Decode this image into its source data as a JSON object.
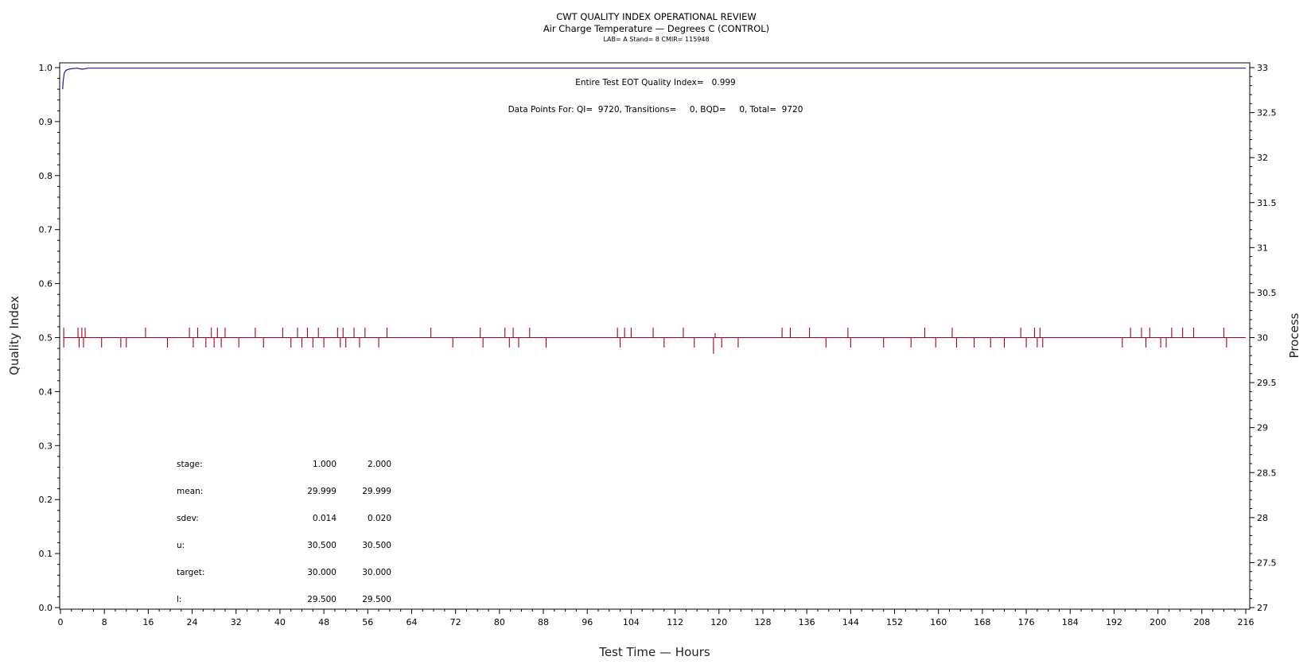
{
  "header": {
    "title": "CWT QUALITY INDEX OPERATIONAL REVIEW",
    "subtitle": "Air Charge Temperature — Degrees C (CONTROL)",
    "info": "LAB= A Stand= 8 CMIR= 115948"
  },
  "annotations": {
    "eot_quality": "Entire Test EOT Quality Index=   0.999",
    "data_points": "Data Points For: QI=  9720, Transitions=     0, BQD=     0, Total=  9720"
  },
  "stats_table": {
    "rows": [
      {
        "label": "stage:",
        "v1": "1.000",
        "v2": "2.000"
      },
      {
        "label": "mean:",
        "v1": "29.999",
        "v2": "29.999"
      },
      {
        "label": "sdev:",
        "v1": "0.014",
        "v2": "0.020"
      },
      {
        "label": "u:",
        "v1": "30.500",
        "v2": "30.500"
      },
      {
        "label": "target:",
        "v1": "30.000",
        "v2": "30.000"
      },
      {
        "label": "l:",
        "v1": "29.500",
        "v2": "29.500"
      }
    ]
  },
  "chart_data": {
    "type": "line",
    "xlabel": "Test Time — Hours",
    "ylabel_left": "Quality Index",
    "ylabel_right": "Process",
    "xlim": [
      0,
      216
    ],
    "x_ticks": [
      0,
      8,
      16,
      24,
      32,
      40,
      48,
      56,
      64,
      72,
      80,
      88,
      96,
      104,
      112,
      120,
      128,
      136,
      144,
      152,
      160,
      168,
      176,
      184,
      192,
      200,
      208,
      216
    ],
    "ylim_left": [
      0.0,
      1.0
    ],
    "y_ticks_left": [
      "0.0",
      "0.1",
      "0.2",
      "0.3",
      "0.4",
      "0.5",
      "0.6",
      "0.7",
      "0.8",
      "0.9",
      "1.0"
    ],
    "ylim_right": [
      27,
      33
    ],
    "y_ticks_right": [
      "27",
      "27.5",
      "28",
      "28.5",
      "29",
      "29.5",
      "30",
      "30.5",
      "31",
      "31.5",
      "32",
      "32.5",
      "33"
    ],
    "grid": false,
    "series": [
      {
        "axis": "left",
        "color": "#1a1aa8",
        "x": [
          0.4,
          0.5,
          0.7,
          1.0,
          1.5,
          2.0,
          3.0,
          3.5,
          4.0,
          4.5,
          5.0,
          6.0,
          10.0,
          216.0
        ],
        "y": [
          0.96,
          0.975,
          0.99,
          0.995,
          0.997,
          0.998,
          0.999,
          0.998,
          0.997,
          0.998,
          0.999,
          0.999,
          0.999,
          0.999
        ]
      },
      {
        "axis": "right",
        "color": "#a3001b",
        "baseline": 30.0,
        "x_range": [
          0.5,
          216.0
        ],
        "spikes": [
          {
            "x": 0.6,
            "y": 30.11
          },
          {
            "x": 0.6,
            "y": 29.89
          },
          {
            "x": 3.2,
            "y": 30.11
          },
          {
            "x": 3.4,
            "y": 29.89
          },
          {
            "x": 3.9,
            "y": 30.11
          },
          {
            "x": 4.2,
            "y": 29.89
          },
          {
            "x": 4.5,
            "y": 30.11
          },
          {
            "x": 7.5,
            "y": 29.89
          },
          {
            "x": 11.0,
            "y": 29.89
          },
          {
            "x": 12.0,
            "y": 29.89
          },
          {
            "x": 15.5,
            "y": 30.11
          },
          {
            "x": 19.5,
            "y": 29.89
          },
          {
            "x": 23.5,
            "y": 30.11
          },
          {
            "x": 24.2,
            "y": 29.89
          },
          {
            "x": 25.0,
            "y": 30.11
          },
          {
            "x": 26.5,
            "y": 29.89
          },
          {
            "x": 27.5,
            "y": 30.11
          },
          {
            "x": 28.0,
            "y": 29.89
          },
          {
            "x": 28.6,
            "y": 30.11
          },
          {
            "x": 29.3,
            "y": 29.89
          },
          {
            "x": 30.0,
            "y": 30.11
          },
          {
            "x": 32.5,
            "y": 29.89
          },
          {
            "x": 35.5,
            "y": 30.11
          },
          {
            "x": 37.0,
            "y": 29.89
          },
          {
            "x": 40.5,
            "y": 30.11
          },
          {
            "x": 42.0,
            "y": 29.89
          },
          {
            "x": 43.2,
            "y": 30.11
          },
          {
            "x": 44.0,
            "y": 29.89
          },
          {
            "x": 45.0,
            "y": 30.11
          },
          {
            "x": 46.0,
            "y": 29.89
          },
          {
            "x": 47.0,
            "y": 30.11
          },
          {
            "x": 48.0,
            "y": 29.89
          },
          {
            "x": 50.5,
            "y": 30.11
          },
          {
            "x": 51.0,
            "y": 29.89
          },
          {
            "x": 51.5,
            "y": 30.11
          },
          {
            "x": 52.0,
            "y": 29.89
          },
          {
            "x": 53.5,
            "y": 30.11
          },
          {
            "x": 54.5,
            "y": 29.89
          },
          {
            "x": 55.5,
            "y": 30.11
          },
          {
            "x": 58.0,
            "y": 29.89
          },
          {
            "x": 59.5,
            "y": 30.11
          },
          {
            "x": 67.5,
            "y": 30.11
          },
          {
            "x": 71.5,
            "y": 29.89
          },
          {
            "x": 76.5,
            "y": 30.11
          },
          {
            "x": 77.0,
            "y": 29.89
          },
          {
            "x": 81.0,
            "y": 30.11
          },
          {
            "x": 81.8,
            "y": 29.89
          },
          {
            "x": 82.5,
            "y": 30.11
          },
          {
            "x": 83.5,
            "y": 29.89
          },
          {
            "x": 85.5,
            "y": 30.11
          },
          {
            "x": 88.5,
            "y": 29.89
          },
          {
            "x": 101.5,
            "y": 30.11
          },
          {
            "x": 102.0,
            "y": 29.89
          },
          {
            "x": 102.8,
            "y": 30.11
          },
          {
            "x": 104.0,
            "y": 30.11
          },
          {
            "x": 108.0,
            "y": 30.11
          },
          {
            "x": 110.0,
            "y": 29.89
          },
          {
            "x": 113.5,
            "y": 30.11
          },
          {
            "x": 115.5,
            "y": 29.89
          },
          {
            "x": 119.0,
            "y": 29.82
          },
          {
            "x": 119.3,
            "y": 30.05
          },
          {
            "x": 120.5,
            "y": 29.89
          },
          {
            "x": 123.5,
            "y": 29.89
          },
          {
            "x": 131.5,
            "y": 30.11
          },
          {
            "x": 133.0,
            "y": 30.11
          },
          {
            "x": 136.5,
            "y": 30.11
          },
          {
            "x": 139.5,
            "y": 29.89
          },
          {
            "x": 143.5,
            "y": 30.11
          },
          {
            "x": 144.0,
            "y": 29.89
          },
          {
            "x": 150.0,
            "y": 29.89
          },
          {
            "x": 155.0,
            "y": 29.89
          },
          {
            "x": 157.5,
            "y": 30.11
          },
          {
            "x": 159.5,
            "y": 29.89
          },
          {
            "x": 162.5,
            "y": 30.11
          },
          {
            "x": 163.3,
            "y": 29.89
          },
          {
            "x": 166.5,
            "y": 29.89
          },
          {
            "x": 169.5,
            "y": 29.89
          },
          {
            "x": 172.0,
            "y": 29.89
          },
          {
            "x": 175.0,
            "y": 30.11
          },
          {
            "x": 176.0,
            "y": 29.89
          },
          {
            "x": 177.5,
            "y": 30.11
          },
          {
            "x": 178.0,
            "y": 29.89
          },
          {
            "x": 178.5,
            "y": 30.11
          },
          {
            "x": 179.0,
            "y": 29.89
          },
          {
            "x": 193.5,
            "y": 29.89
          },
          {
            "x": 195.0,
            "y": 30.11
          },
          {
            "x": 197.0,
            "y": 30.11
          },
          {
            "x": 197.8,
            "y": 29.89
          },
          {
            "x": 198.5,
            "y": 30.11
          },
          {
            "x": 200.5,
            "y": 29.89
          },
          {
            "x": 201.5,
            "y": 29.89
          },
          {
            "x": 202.5,
            "y": 30.11
          },
          {
            "x": 204.5,
            "y": 30.11
          },
          {
            "x": 206.5,
            "y": 30.11
          },
          {
            "x": 212.0,
            "y": 30.11
          },
          {
            "x": 212.5,
            "y": 29.89
          }
        ]
      }
    ]
  }
}
